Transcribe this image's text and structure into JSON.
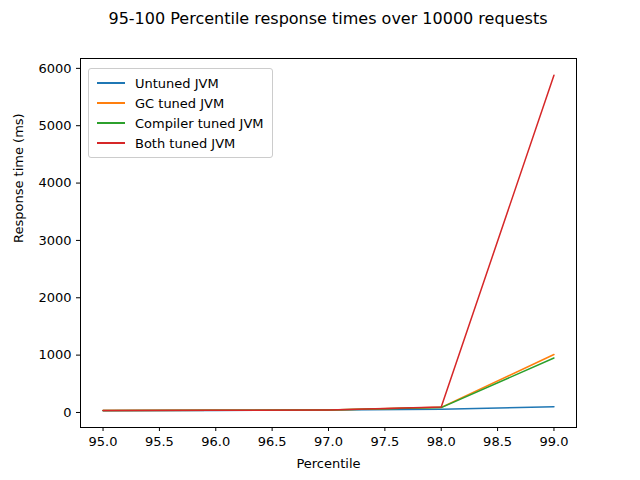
{
  "chart_data": {
    "type": "line",
    "title": "95-100 Percentile response times over 10000 requests",
    "x_label": "Percentile",
    "y_label": "Response time (ms)",
    "x": [
      95,
      96,
      97,
      98,
      99
    ],
    "series": [
      {
        "name": "Untuned JVM",
        "color": "#1f77b4",
        "values": [
          30,
          35,
          45,
          55,
          100
        ]
      },
      {
        "name": "GC tuned JVM",
        "color": "#ff7f0e",
        "values": [
          35,
          38,
          45,
          90,
          1010
        ]
      },
      {
        "name": "Compiler tuned JVM",
        "color": "#2ca02c",
        "values": [
          35,
          38,
          45,
          85,
          950
        ]
      },
      {
        "name": "Both tuned JVM",
        "color": "#d62728",
        "values": [
          35,
          38,
          45,
          95,
          5880
        ]
      }
    ],
    "xlim": [
      94.8,
      99.2
    ],
    "xticks": [
      {
        "value": 95,
        "label": "95.0"
      },
      {
        "value": 95.5,
        "label": "95.5"
      },
      {
        "value": 96,
        "label": "96.0"
      },
      {
        "value": 96.5,
        "label": "96.5"
      },
      {
        "value": 97,
        "label": "97.0"
      },
      {
        "value": 97.5,
        "label": "97.5"
      },
      {
        "value": 98,
        "label": "98.0"
      },
      {
        "value": 98.5,
        "label": "98.5"
      },
      {
        "value": 99,
        "label": "99.0"
      }
    ],
    "ylim": [
      -262,
      6172
    ],
    "yticks": [
      0,
      1000,
      2000,
      3000,
      4000,
      5000,
      6000
    ],
    "grid": false,
    "legend": "upper left"
  }
}
